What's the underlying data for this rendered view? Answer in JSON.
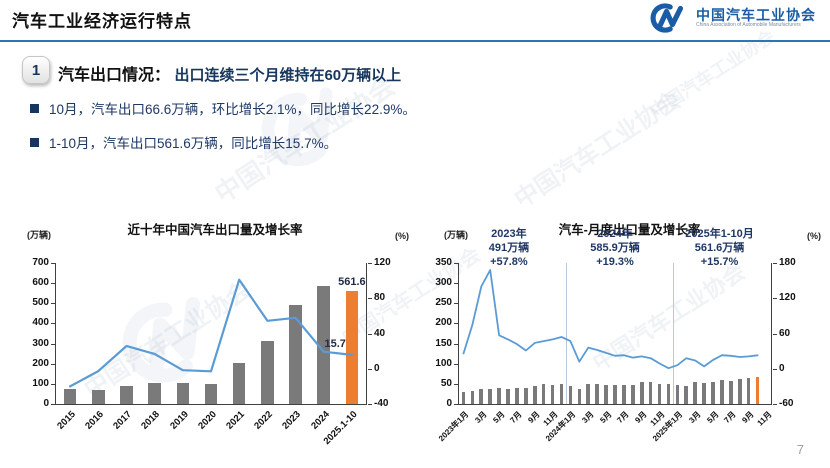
{
  "header": {
    "title": "汽车工业经济运行特点",
    "logo": {
      "name_cn": "中国汽车工业协会",
      "name_en": "China Association of Automobile Manufacturers"
    }
  },
  "section": {
    "badge": "1",
    "heading_black": "汽车出口情况：",
    "heading_blue": "出口连续三个月维持在60万辆以上",
    "bullets": [
      "10月，汽车出口66.6万辆，环比增长2.1%，同比增长22.9%。",
      "1-10月，汽车出口561.6万辆，同比增长15.7%。"
    ]
  },
  "watermark_text": "中国汽车工业协会",
  "page_number": "7",
  "colors": {
    "rule_blue": "#2E75B6",
    "navy": "#1F3864",
    "bar_gray": "#7a7a7a",
    "bar_orange": "#ED7D31",
    "line_blue": "#5B9BD5",
    "separator": "#b9c9d9",
    "axis": "#404040",
    "logo_blue": "#1A5DA6"
  },
  "chart_data": [
    {
      "type": "bar",
      "subtype": "combo-bar-line",
      "title": "近十年中国汽车出口量及增长率",
      "unit_left": "(万辆)",
      "unit_right": "(%)",
      "legend": "none",
      "grid": false,
      "categories": [
        "2015",
        "2016",
        "2017",
        "2018",
        "2019",
        "2020",
        "2021",
        "2022",
        "2023",
        "2024",
        "2025.1-10"
      ],
      "bar_series_name": "出口量(万辆)",
      "bar_values": [
        72.8,
        70.8,
        89.1,
        104.1,
        102.4,
        99.5,
        201.5,
        311.1,
        491,
        585.9,
        561.6
      ],
      "line_series_name": "增长率(%)",
      "line_values": [
        -20,
        -2.7,
        25.8,
        16.8,
        -1.6,
        -2.9,
        101.1,
        54.4,
        57.8,
        19.3,
        15.7
      ],
      "ylim_left": [
        0,
        700
      ],
      "yticks_left": [
        0,
        100,
        200,
        300,
        400,
        500,
        600,
        700
      ],
      "ylim_right": [
        -40,
        120
      ],
      "yticks_right": [
        -40,
        0,
        40,
        80,
        120
      ],
      "highlight_index": 10,
      "bar_width_frac": 0.45,
      "line_width": 2.2,
      "bar_value_label": {
        "index": 10,
        "text": "561.6"
      },
      "line_value_label": {
        "index": 10,
        "text": "15.7"
      }
    },
    {
      "type": "bar",
      "subtype": "combo-bar-line",
      "title": "汽车-月度出口量及增长率",
      "unit_left": "(万辆)",
      "unit_right": "(%)",
      "legend": "none",
      "grid": false,
      "categories": [
        "2023-01",
        "2023-02",
        "2023-03",
        "2023-04",
        "2023-05",
        "2023-06",
        "2023-07",
        "2023-08",
        "2023-09",
        "2023-10",
        "2023-11",
        "2023-12",
        "2024-01",
        "2024-02",
        "2024-03",
        "2024-04",
        "2024-05",
        "2024-06",
        "2024-07",
        "2024-08",
        "2024-09",
        "2024-10",
        "2024-11",
        "2024-12",
        "2025-01",
        "2025-02",
        "2025-03",
        "2025-04",
        "2025-05",
        "2025-06",
        "2025-07",
        "2025-08",
        "2025-09",
        "2025-10"
      ],
      "bar_series_name": "月度出口量(万辆)",
      "bar_values": [
        30.1,
        32.9,
        36.4,
        37.6,
        38.9,
        38.2,
        39.2,
        40.8,
        44.4,
        48.8,
        48.2,
        49.9,
        44.3,
        37.7,
        50.2,
        50.4,
        48.1,
        48.5,
        46.9,
        48.5,
        53.9,
        54.6,
        49.7,
        50.5,
        47.0,
        44.1,
        55.3,
        51.7,
        55.1,
        59.3,
        57.5,
        61.1,
        65.2,
        66.6
      ],
      "line_series_name": "同比增长率(%)",
      "line_values": [
        26,
        75,
        140,
        168,
        57,
        50,
        42,
        31,
        44,
        47,
        50,
        54,
        47,
        12,
        36,
        32,
        27,
        22,
        23,
        19,
        21,
        18,
        9,
        1,
        6,
        18,
        14,
        4,
        15,
        23,
        22,
        20,
        21,
        22.9
      ],
      "n_slots": 35,
      "xtick_labels": [
        "2023年1月",
        "3月",
        "5月",
        "7月",
        "9月",
        "11月",
        "2024年1月",
        "3月",
        "5月",
        "7月",
        "9月",
        "11月",
        "2025年1月",
        "3月",
        "5月",
        "7月",
        "9月",
        "11月"
      ],
      "xtick_positions": [
        0,
        2,
        4,
        6,
        8,
        10,
        12,
        14,
        16,
        18,
        20,
        22,
        24,
        26,
        28,
        30,
        32,
        34
      ],
      "ylim_left": [
        0,
        350
      ],
      "yticks_left": [
        0,
        50,
        100,
        150,
        200,
        250,
        300,
        350
      ],
      "ylim_right": [
        -60,
        180
      ],
      "yticks_right": [
        -60,
        0,
        60,
        120,
        180
      ],
      "highlight_index": 33,
      "bar_width_frac": 0.42,
      "line_width": 1.8,
      "separators_at": [
        12,
        24
      ],
      "annotations": [
        {
          "lines": [
            "2023年",
            "491万辆",
            "+57.8%"
          ],
          "x_frac": 0.16
        },
        {
          "lines": [
            "2024年",
            "585.9万辆",
            "+19.3%"
          ],
          "x_frac": 0.5
        },
        {
          "lines": [
            "2025年1-10月",
            "561.6万辆",
            "+15.7%"
          ],
          "x_frac": 0.835
        }
      ]
    }
  ]
}
